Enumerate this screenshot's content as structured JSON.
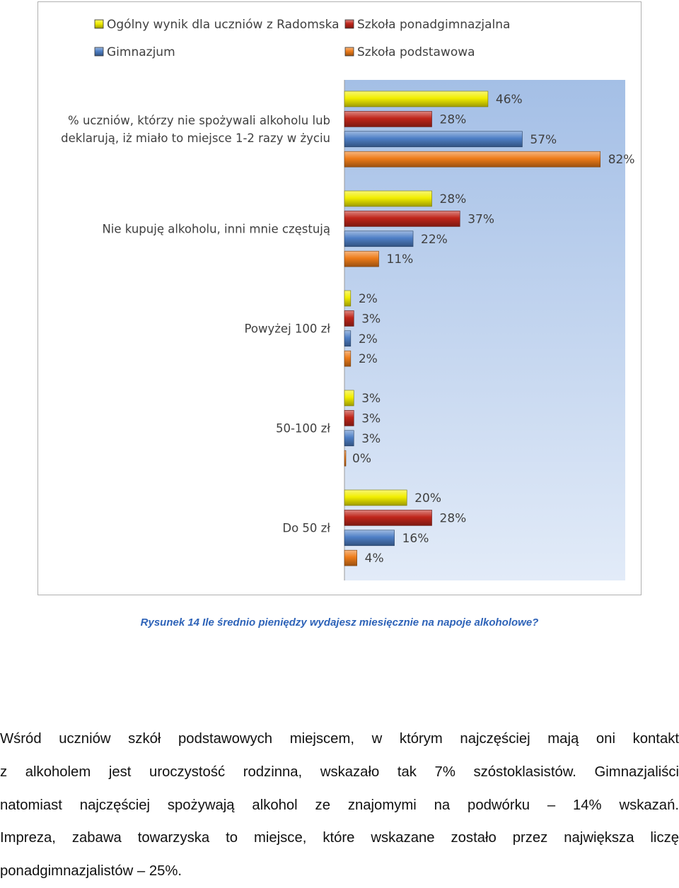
{
  "chart_data": {
    "type": "bar",
    "orientation": "horizontal",
    "title": "",
    "xlabel": "",
    "ylabel": "",
    "xlim": [
      0,
      0.9
    ],
    "grid": false,
    "legend_position": "top",
    "categories": [
      "% uczniów, którzy nie spożywali alkoholu lub deklarują, iż miało to miejsce 1-2 razy w życiu",
      "Nie kupuję alkoholu, inni mnie częstują",
      "Powyżej 100 zł",
      "50-100 zł",
      "Do 50 zł"
    ],
    "category_lines": [
      [
        "% uczniów, którzy nie spożywali alkoholu lub",
        "deklarują, iż miało to miejsce 1-2 razy w życiu"
      ],
      [
        "Nie kupuję alkoholu, inni mnie częstują"
      ],
      [
        "Powyżej 100 zł"
      ],
      [
        "50-100 zł"
      ],
      [
        "Do 50 zł"
      ]
    ],
    "series": [
      {
        "name": "Ogólny wynik dla uczniów z Radomska",
        "color": "#f2ee00",
        "values": [
          0.46,
          0.28,
          0.02,
          0.03,
          0.2
        ],
        "labels": [
          "46%",
          "28%",
          "2%",
          "3%",
          "20%"
        ]
      },
      {
        "name": "Szkoła ponadgimnazjalna",
        "color": "#c0261b",
        "values": [
          0.28,
          0.37,
          0.03,
          0.03,
          0.28
        ],
        "labels": [
          "28%",
          "37%",
          "3%",
          "3%",
          "28%"
        ]
      },
      {
        "name": "Gimnazjum",
        "color": "#4e7fc6",
        "values": [
          0.57,
          0.22,
          0.02,
          0.03,
          0.16
        ],
        "labels": [
          "57%",
          "22%",
          "2%",
          "3%",
          "16%"
        ]
      },
      {
        "name": "Szkoła podstawowa",
        "color": "#ee7c1a",
        "values": [
          0.82,
          0.11,
          0.02,
          0.0,
          0.04
        ],
        "labels": [
          "82%",
          "11%",
          "2%",
          "0%",
          "4%"
        ]
      }
    ]
  },
  "caption": "Rysunek 14 Ile średnio pieniędzy wydajesz miesięcznie na napoje alkoholowe?",
  "body_lines": [
    "Wśród uczniów szkół podstawowych miejscem, w którym najczęściej mają oni kontakt",
    "z alkoholem jest uroczystość rodzinna, wskazało tak 7% szóstoklasistów. Gimnazjaliści",
    "natomiast najczęściej spożywają alkohol ze znajomymi na podwórku – 14% wskazań.",
    "Impreza, zabawa towarzyska to miejsce, które wskazane zostało przez największa liczę",
    "ponadgimnazjalistów – 25%."
  ]
}
